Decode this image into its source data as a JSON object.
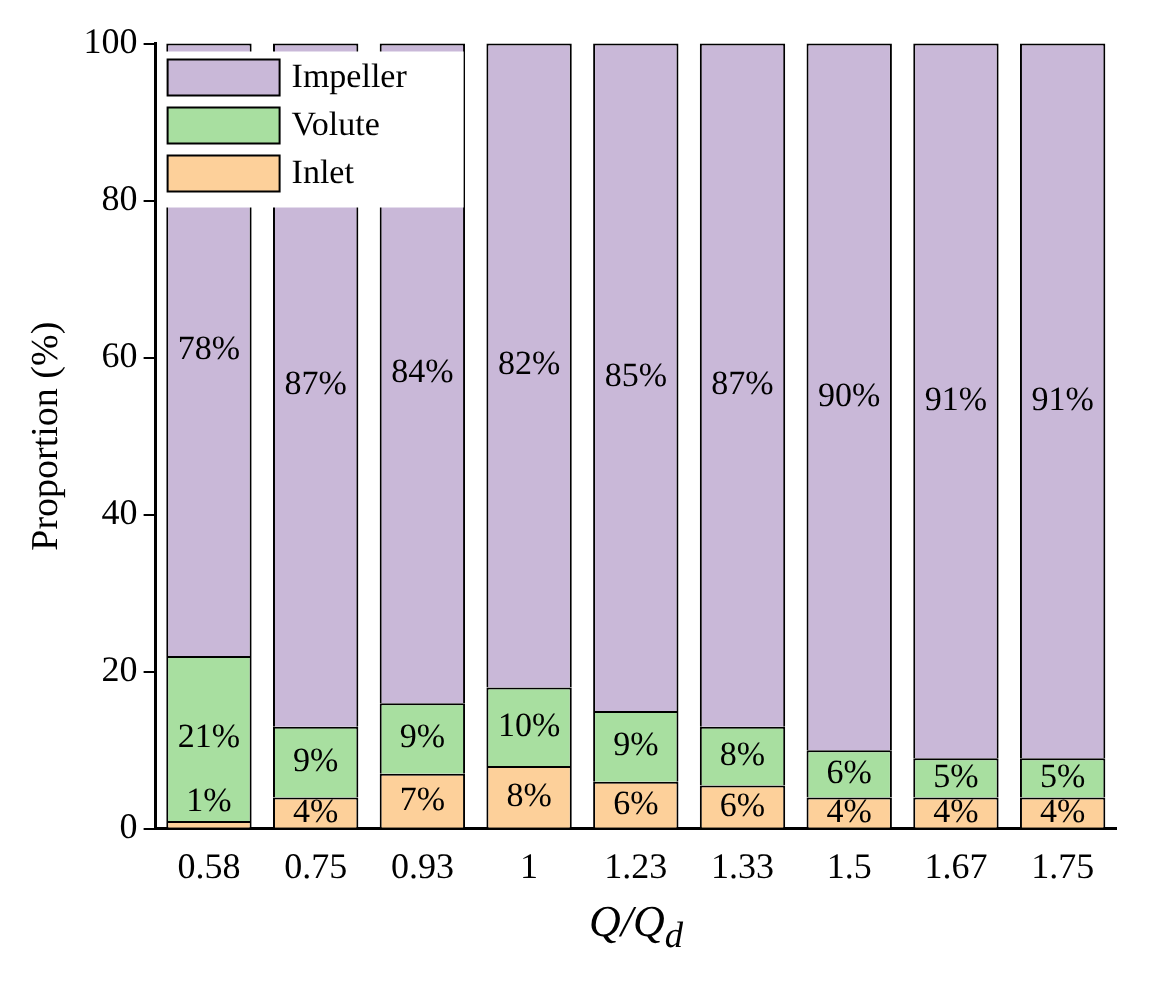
{
  "chart_data": {
    "type": "bar",
    "stacked": true,
    "xlabel": "Q/Q$_{d}$",
    "ylabel": "Proportion (%)",
    "categories": [
      "0.58",
      "0.75",
      "0.93",
      "1",
      "1.23",
      "1.33",
      "1.5",
      "1.67",
      "1.75"
    ],
    "series": [
      {
        "name": "Inlet",
        "color": "#fdd09a",
        "values": [
          1,
          4,
          7,
          8,
          6,
          5.5,
          4,
          4,
          4
        ],
        "value_labels": [
          "1%",
          "4%",
          "7%",
          "8%",
          "6%",
          "6%",
          "4%",
          "4%",
          "4%"
        ]
      },
      {
        "name": "Volute",
        "color": "#a8dfa0",
        "values": [
          21,
          9,
          9,
          10,
          9,
          7.5,
          6,
          5,
          5
        ],
        "value_labels": [
          "21%",
          "9%",
          "9%",
          "10%",
          "9%",
          "8%",
          "6%",
          "5%",
          "5%"
        ]
      },
      {
        "name": "Impeller",
        "color": "#c9b8d8",
        "values": [
          78,
          87,
          84,
          82,
          85,
          87,
          90,
          91,
          91
        ],
        "value_labels": [
          "78%",
          "87%",
          "84%",
          "82%",
          "85%",
          "87%",
          "90%",
          "91%",
          "91%"
        ]
      }
    ],
    "ylim": [
      0,
      100
    ],
    "yticks": [
      0,
      20,
      40,
      60,
      80,
      100
    ],
    "grid": false,
    "legend": "top left"
  }
}
